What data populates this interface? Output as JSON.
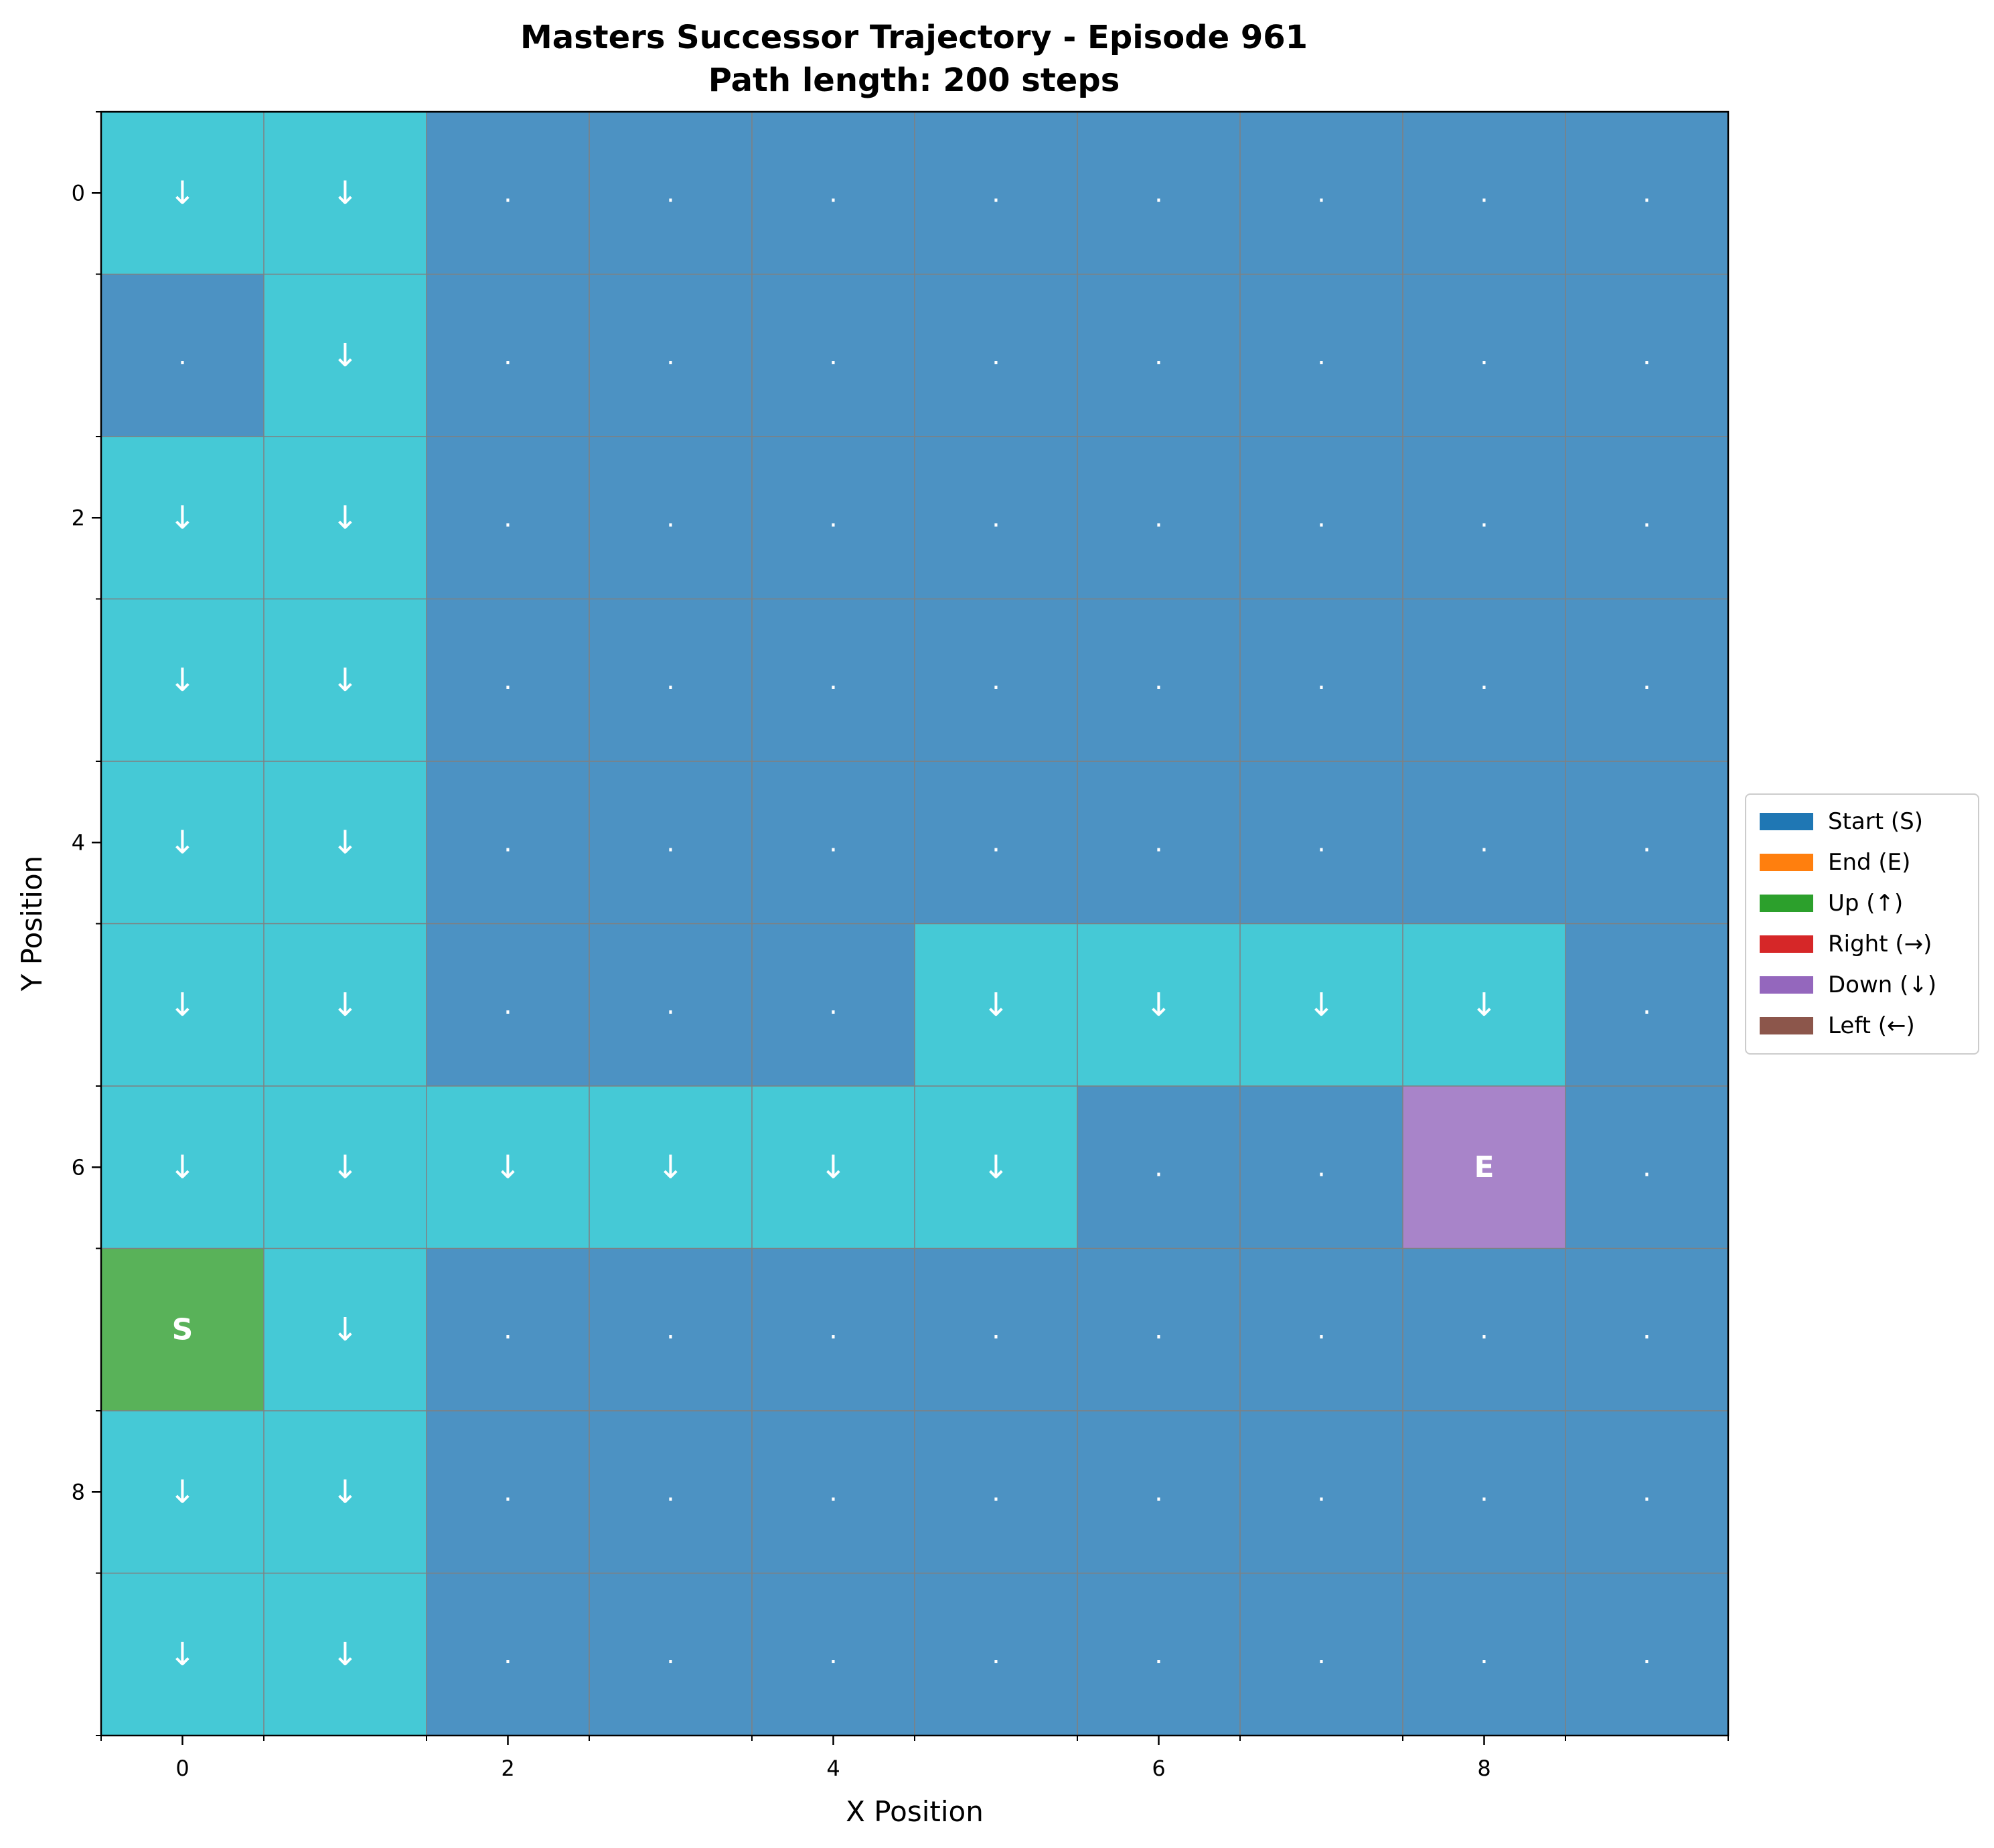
{
  "title": "Masters Successor Trajectory - Episode 961",
  "subtitle": "Path length: 200 steps",
  "colors": {
    "path": "#45c9d6",
    "empty": "#4c92c3",
    "start": "#59b259",
    "end": "#a884c9",
    "grid_line": "#808080"
  },
  "chart_data": {
    "type": "heatmap",
    "xlabel": "X Position",
    "ylabel": "Y Position",
    "x_ticks": [
      0,
      2,
      4,
      6,
      8
    ],
    "y_ticks": [
      0,
      2,
      4,
      6,
      8
    ],
    "x_tick_labels": [
      "0",
      "2",
      "4",
      "6",
      "8"
    ],
    "y_tick_labels": [
      "0",
      "2",
      "4",
      "6",
      "8"
    ],
    "xlim": [
      -0.5,
      9.5
    ],
    "ylim": [
      9.5,
      -0.5
    ],
    "cols": 10,
    "rows": 10,
    "y_axis_inverted": true,
    "grid": true,
    "legend_position": "center-right",
    "start": {
      "x": 0,
      "y": 7,
      "label": "S"
    },
    "end": {
      "x": 8,
      "y": 6,
      "label": "E"
    },
    "path_symbol": "↓",
    "empty_symbol": ".",
    "cells": [
      [
        "p",
        "p",
        "e",
        "e",
        "e",
        "e",
        "e",
        "e",
        "e",
        "e"
      ],
      [
        "e",
        "p",
        "e",
        "e",
        "e",
        "e",
        "e",
        "e",
        "e",
        "e"
      ],
      [
        "p",
        "p",
        "e",
        "e",
        "e",
        "e",
        "e",
        "e",
        "e",
        "e"
      ],
      [
        "p",
        "p",
        "e",
        "e",
        "e",
        "e",
        "e",
        "e",
        "e",
        "e"
      ],
      [
        "p",
        "p",
        "e",
        "e",
        "e",
        "e",
        "e",
        "e",
        "e",
        "e"
      ],
      [
        "p",
        "p",
        "e",
        "e",
        "e",
        "p",
        "p",
        "p",
        "p",
        "e"
      ],
      [
        "p",
        "p",
        "p",
        "p",
        "p",
        "p",
        "e",
        "e",
        "E",
        "e"
      ],
      [
        "S",
        "p",
        "e",
        "e",
        "e",
        "e",
        "e",
        "e",
        "e",
        "e"
      ],
      [
        "p",
        "p",
        "e",
        "e",
        "e",
        "e",
        "e",
        "e",
        "e",
        "e"
      ],
      [
        "p",
        "p",
        "e",
        "e",
        "e",
        "e",
        "e",
        "e",
        "e",
        "e"
      ]
    ],
    "legend": [
      {
        "label": "Start (S)",
        "color": "#1f77b4"
      },
      {
        "label": "End (E)",
        "color": "#ff7f0e"
      },
      {
        "label": "Up (↑)",
        "color": "#2ca02c"
      },
      {
        "label": "Right (→)",
        "color": "#d62728"
      },
      {
        "label": "Down (↓)",
        "color": "#9467bd"
      },
      {
        "label": "Left (←)",
        "color": "#8c564b"
      }
    ]
  }
}
